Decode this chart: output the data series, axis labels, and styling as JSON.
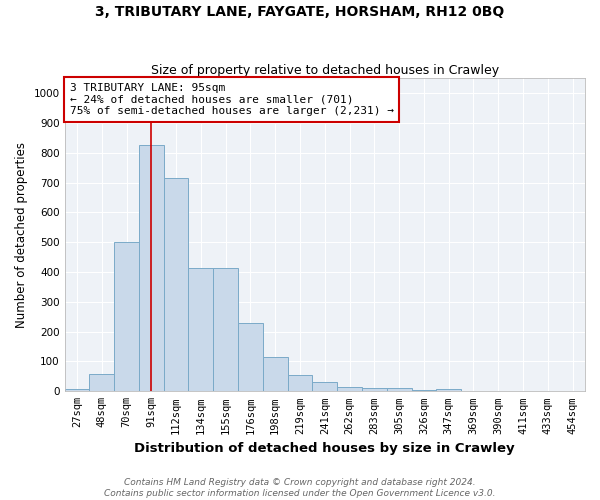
{
  "title": "3, TRIBUTARY LANE, FAYGATE, HORSHAM, RH12 0BQ",
  "subtitle": "Size of property relative to detached houses in Crawley",
  "xlabel": "Distribution of detached houses by size in Crawley",
  "ylabel": "Number of detached properties",
  "footnote1": "Contains HM Land Registry data © Crown copyright and database right 2024.",
  "footnote2": "Contains public sector information licensed under the Open Government Licence v3.0.",
  "bin_labels": [
    "27sqm",
    "48sqm",
    "70sqm",
    "91sqm",
    "112sqm",
    "134sqm",
    "155sqm",
    "176sqm",
    "198sqm",
    "219sqm",
    "241sqm",
    "262sqm",
    "283sqm",
    "305sqm",
    "326sqm",
    "347sqm",
    "369sqm",
    "390sqm",
    "411sqm",
    "433sqm",
    "454sqm"
  ],
  "bar_values": [
    8,
    57,
    500,
    825,
    715,
    415,
    415,
    230,
    115,
    55,
    30,
    15,
    12,
    12,
    5,
    8,
    0,
    0,
    0,
    0,
    0
  ],
  "bar_color": "#c9d9ea",
  "bar_edge_color": "#7aaac8",
  "vline_x": 3.0,
  "vline_color": "#cc0000",
  "annotation_text": "3 TRIBUTARY LANE: 95sqm\n← 24% of detached houses are smaller (701)\n75% of semi-detached houses are larger (2,231) →",
  "annotation_box_color": "#ffffff",
  "annotation_box_edge_color": "#cc0000",
  "ylim": [
    0,
    1050
  ],
  "yticks": [
    0,
    100,
    200,
    300,
    400,
    500,
    600,
    700,
    800,
    900,
    1000
  ],
  "bg_color": "#eef2f7",
  "grid_color": "#ffffff",
  "title_fontsize": 10,
  "subtitle_fontsize": 9,
  "axis_label_fontsize": 8.5,
  "tick_fontsize": 7.5,
  "annotation_fontsize": 8,
  "footnote_fontsize": 6.5
}
